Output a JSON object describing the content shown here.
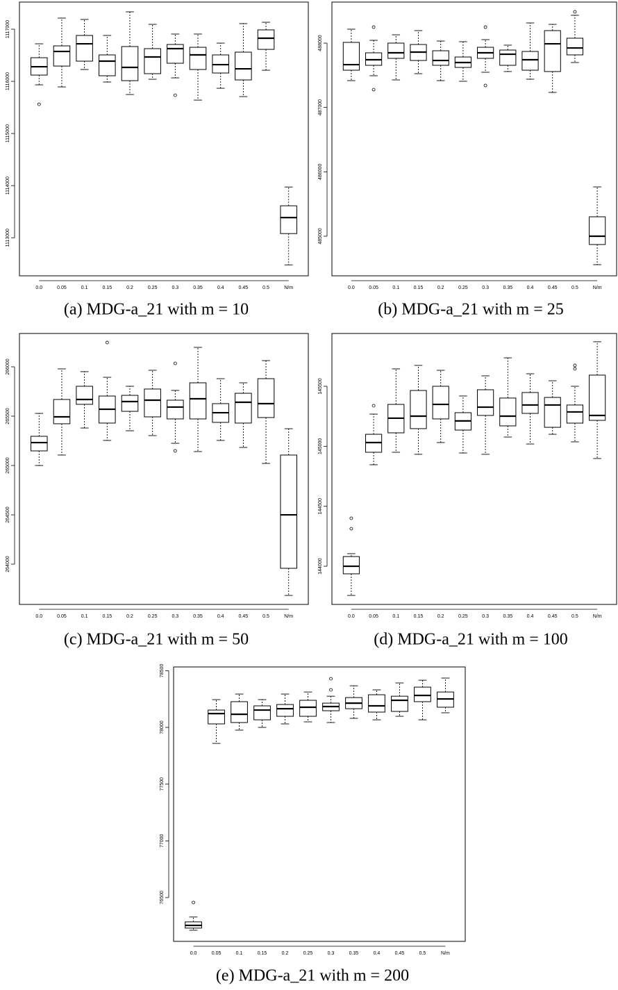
{
  "chart_data": [
    {
      "type": "box",
      "caption": "(a) MDG-a_21 with m = 10",
      "color": "#000000",
      "categories": [
        "0.0",
        "0.05",
        "0.1",
        "0.15",
        "0.2",
        "0.25",
        "0.3",
        "0.35",
        "0.4",
        "0.45",
        "0.5",
        "N/m"
      ],
      "ylim": [
        1112270,
        1117520
      ],
      "yticks": [
        1113000,
        1114000,
        1115000,
        1116000,
        1117000
      ],
      "boxes": [
        {
          "low": 1115933,
          "q1": 1116120,
          "median": 1116280,
          "q3": 1116453,
          "high": 1116720,
          "outliers": [
            1115560
          ]
        },
        {
          "low": 1115893,
          "q1": 1116293,
          "median": 1116573,
          "q3": 1116680,
          "high": 1117213
        },
        {
          "low": 1116227,
          "q1": 1116387,
          "median": 1116720,
          "q3": 1116880,
          "high": 1117187
        },
        {
          "low": 1115987,
          "q1": 1116107,
          "median": 1116387,
          "q3": 1116507,
          "high": 1116880
        },
        {
          "low": 1115747,
          "q1": 1116013,
          "median": 1116267,
          "q3": 1116667,
          "high": 1117333
        },
        {
          "low": 1116040,
          "q1": 1116147,
          "median": 1116467,
          "q3": 1116627,
          "high": 1117093
        },
        {
          "low": 1116067,
          "q1": 1116347,
          "median": 1116627,
          "q3": 1116707,
          "high": 1116907,
          "outliers": [
            1115733
          ]
        },
        {
          "low": 1115640,
          "q1": 1116227,
          "median": 1116507,
          "q3": 1116653,
          "high": 1116907
        },
        {
          "low": 1115867,
          "q1": 1116160,
          "median": 1116320,
          "q3": 1116507,
          "high": 1116733
        },
        {
          "low": 1115707,
          "q1": 1116027,
          "median": 1116240,
          "q3": 1116560,
          "high": 1117107
        },
        {
          "low": 1116213,
          "q1": 1116613,
          "median": 1116827,
          "q3": 1116987,
          "high": 1117133
        },
        {
          "low": 1112480,
          "q1": 1113080,
          "median": 1113387,
          "q3": 1113613,
          "high": 1113973
        }
      ]
    },
    {
      "type": "box",
      "caption": "(b) MDG-a_21 with m = 25",
      "color": "#000000",
      "categories": [
        "0.0",
        "0.05",
        "0.1",
        "0.15",
        "0.2",
        "0.25",
        "0.3",
        "0.35",
        "0.4",
        "0.45",
        "0.5",
        "N/m"
      ],
      "ylim": [
        484385,
        488637
      ],
      "yticks": [
        485000,
        486000,
        487000,
        488000
      ],
      "boxes": [
        {
          "low": 487417,
          "q1": 487579,
          "median": 487665,
          "q3": 488011,
          "high": 488216
        },
        {
          "low": 487493,
          "q1": 487655,
          "median": 487741,
          "q3": 487849,
          "high": 488043,
          "outliers": [
            488248,
            487277
          ]
        },
        {
          "low": 487428,
          "q1": 487763,
          "median": 487849,
          "q3": 488000,
          "high": 488129
        },
        {
          "low": 487525,
          "q1": 487730,
          "median": 487860,
          "q3": 487978,
          "high": 488194
        },
        {
          "low": 487417,
          "q1": 487655,
          "median": 487730,
          "q3": 487881,
          "high": 488032
        },
        {
          "low": 487407,
          "q1": 487622,
          "median": 487698,
          "q3": 487784,
          "high": 488022
        },
        {
          "low": 487547,
          "q1": 487763,
          "median": 487849,
          "q3": 487935,
          "high": 488054,
          "outliers": [
            488248,
            487342
          ]
        },
        {
          "low": 487558,
          "q1": 487655,
          "median": 487827,
          "q3": 487892,
          "high": 487968
        },
        {
          "low": 487439,
          "q1": 487579,
          "median": 487741,
          "q3": 487870,
          "high": 488313
        },
        {
          "low": 487234,
          "q1": 487558,
          "median": 487989,
          "q3": 488194,
          "high": 488291
        },
        {
          "low": 487698,
          "q1": 487817,
          "median": 487924,
          "q3": 488076,
          "high": 488432,
          "outliers": [
            488486
          ]
        },
        {
          "low": 484558,
          "q1": 484871,
          "median": 485000,
          "q3": 485302,
          "high": 485766
        }
      ]
    },
    {
      "type": "box",
      "caption": "(c) MDG-a_21 with m = 50",
      "color": "#000000",
      "categories": [
        "0.0",
        "0.05",
        "0.1",
        "0.15",
        "0.2",
        "0.25",
        "0.3",
        "0.35",
        "0.4",
        "0.45",
        "0.5",
        "N/m"
      ],
      "ylim": [
        263592,
        266338
      ],
      "yticks": [
        264000,
        264500,
        265000,
        265500,
        266000
      ],
      "boxes": [
        {
          "low": 265000,
          "q1": 265148,
          "median": 265232,
          "q3": 265296,
          "high": 265528
        },
        {
          "low": 265106,
          "q1": 265423,
          "median": 265493,
          "q3": 265669,
          "high": 265979
        },
        {
          "low": 265380,
          "q1": 265620,
          "median": 265669,
          "q3": 265803,
          "high": 265951
        },
        {
          "low": 265254,
          "q1": 265430,
          "median": 265570,
          "q3": 265704,
          "high": 265894,
          "outliers": [
            266246
          ]
        },
        {
          "low": 265352,
          "q1": 265549,
          "median": 265648,
          "q3": 265711,
          "high": 265803
        },
        {
          "low": 265303,
          "q1": 265493,
          "median": 265662,
          "q3": 265775,
          "high": 265965
        },
        {
          "low": 265225,
          "q1": 265472,
          "median": 265592,
          "q3": 265662,
          "high": 265761,
          "outliers": [
            266035,
            265148
          ]
        },
        {
          "low": 265141,
          "q1": 265472,
          "median": 265676,
          "q3": 265838,
          "high": 266197
        },
        {
          "low": 265254,
          "q1": 265437,
          "median": 265535,
          "q3": 265627,
          "high": 265880
        },
        {
          "low": 265183,
          "q1": 265430,
          "median": 265641,
          "q3": 265732,
          "high": 265838
        },
        {
          "low": 265021,
          "q1": 265486,
          "median": 265627,
          "q3": 265880,
          "high": 266063
        },
        {
          "low": 263683,
          "q1": 263958,
          "median": 264500,
          "q3": 265106,
          "high": 265373
        }
      ]
    },
    {
      "type": "box",
      "caption": "(d) MDG-a_21 with m = 100",
      "color": "#000000",
      "categories": [
        "0.0",
        "0.05",
        "0.1",
        "0.15",
        "0.2",
        "0.25",
        "0.3",
        "0.35",
        "0.4",
        "0.45",
        "0.5",
        "N/m"
      ],
      "ylim": [
        143682,
        145940
      ],
      "yticks": [
        144000,
        144500,
        145000,
        145500
      ],
      "boxes": [
        {
          "low": 143757,
          "q1": 143937,
          "median": 144000,
          "q3": 144081,
          "high": 144105,
          "outliers": [
            144400,
            144313
          ]
        },
        {
          "low": 144846,
          "q1": 144950,
          "median": 145031,
          "q3": 145100,
          "high": 145268,
          "outliers": [
            145338
          ]
        },
        {
          "low": 144950,
          "q1": 145112,
          "median": 145234,
          "q3": 145349,
          "high": 145645
        },
        {
          "low": 144933,
          "q1": 145147,
          "median": 145251,
          "q3": 145465,
          "high": 145674
        },
        {
          "low": 145031,
          "q1": 145228,
          "median": 145349,
          "q3": 145500,
          "high": 145633
        },
        {
          "low": 144944,
          "q1": 145135,
          "median": 145211,
          "q3": 145280,
          "high": 145419
        },
        {
          "low": 144933,
          "q1": 145257,
          "median": 145326,
          "q3": 145471,
          "high": 145587
        },
        {
          "low": 145077,
          "q1": 145170,
          "median": 145251,
          "q3": 145402,
          "high": 145737
        },
        {
          "low": 145019,
          "q1": 145274,
          "median": 145344,
          "q3": 145448,
          "high": 145604
        },
        {
          "low": 145100,
          "q1": 145158,
          "median": 145344,
          "q3": 145407,
          "high": 145546
        },
        {
          "low": 145037,
          "q1": 145193,
          "median": 145286,
          "q3": 145344,
          "high": 145500,
          "outliers": [
            145674,
            145645
          ]
        },
        {
          "low": 144898,
          "q1": 145216,
          "median": 145257,
          "q3": 145593,
          "high": 145871
        }
      ]
    },
    {
      "type": "box",
      "caption": "(e) MDG-a_21 with m = 200",
      "color": "#000000",
      "categories": [
        "0.0",
        "0.05",
        "0.1",
        "0.15",
        "0.2",
        "0.25",
        "0.3",
        "0.35",
        "0.4",
        "0.45",
        "0.5",
        "N/m"
      ],
      "ylim": [
        76114,
        78533
      ],
      "yticks": [
        76500,
        77000,
        77500,
        78000,
        78500
      ],
      "boxes": [
        {
          "low": 76212,
          "q1": 76231,
          "median": 76255,
          "q3": 76286,
          "high": 76329,
          "outliers": [
            76457
          ]
        },
        {
          "low": 77859,
          "q1": 78031,
          "median": 78122,
          "q3": 78153,
          "high": 78245
        },
        {
          "low": 77976,
          "q1": 78043,
          "median": 78116,
          "q3": 78227,
          "high": 78294
        },
        {
          "low": 78000,
          "q1": 78067,
          "median": 78153,
          "q3": 78190,
          "high": 78245
        },
        {
          "low": 78031,
          "q1": 78098,
          "median": 78165,
          "q3": 78202,
          "high": 78294
        },
        {
          "low": 78049,
          "q1": 78098,
          "median": 78178,
          "q3": 78239,
          "high": 78312
        },
        {
          "low": 78043,
          "q1": 78147,
          "median": 78184,
          "q3": 78214,
          "high": 78275,
          "outliers": [
            78429,
            78331
          ]
        },
        {
          "low": 78080,
          "q1": 78165,
          "median": 78214,
          "q3": 78263,
          "high": 78367
        },
        {
          "low": 78067,
          "q1": 78135,
          "median": 78190,
          "q3": 78288,
          "high": 78331
        },
        {
          "low": 78098,
          "q1": 78141,
          "median": 78239,
          "q3": 78275,
          "high": 78392
        },
        {
          "low": 78067,
          "q1": 78227,
          "median": 78282,
          "q3": 78355,
          "high": 78416
        },
        {
          "low": 78129,
          "q1": 78178,
          "median": 78251,
          "q3": 78312,
          "high": 78435
        }
      ]
    }
  ]
}
